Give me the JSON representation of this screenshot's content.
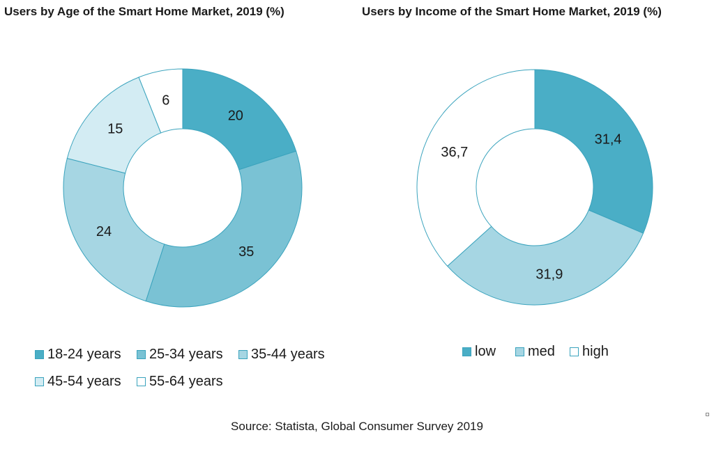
{
  "colors": {
    "stroke": "#3aa3bd",
    "age": [
      "#4aaec6",
      "#7ac2d4",
      "#a6d6e3",
      "#d3ecf3",
      "#ffffff"
    ],
    "income": [
      "#4aaec6",
      "#a6d6e3",
      "#ffffff"
    ]
  },
  "chart_data": [
    {
      "type": "pie",
      "variant": "donut",
      "title": "Users by Age of the Smart Home Market, 2019 (%)",
      "categories": [
        "18-24 years",
        "25-34 years",
        "35-44 years",
        "45-54 years",
        "55-64 years"
      ],
      "values": [
        20,
        35,
        24,
        15,
        6
      ],
      "data_labels": [
        "20",
        "35",
        "24",
        "15",
        "6"
      ],
      "legend_position": "bottom"
    },
    {
      "type": "pie",
      "variant": "donut",
      "title": "Users by Income of the Smart Home Market, 2019 (%)",
      "categories": [
        "low",
        "med",
        "high"
      ],
      "values": [
        31.4,
        31.9,
        36.7
      ],
      "data_labels": [
        "31,4",
        "31,9",
        "36,7"
      ],
      "legend_position": "bottom"
    }
  ],
  "source": "Source: Statista, Global Consumer Survey 2019"
}
